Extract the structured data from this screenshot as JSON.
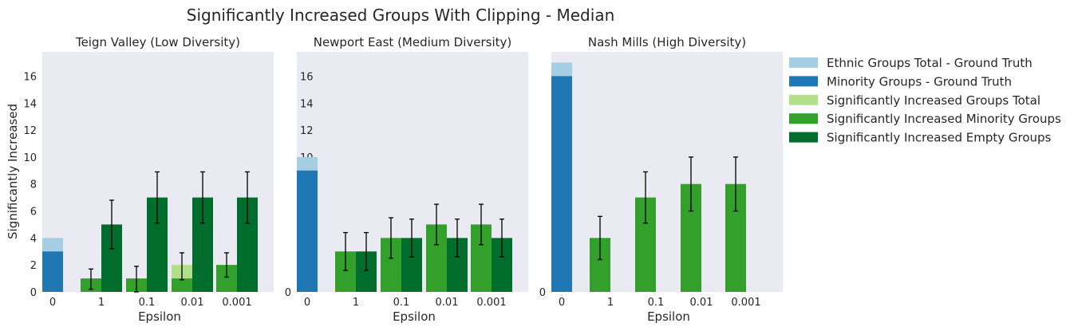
{
  "chart_data": {
    "type": "bar",
    "title": "Significantly Increased Groups With Clipping - Median",
    "ylabel": "Significantly Increased",
    "xlabel": "Epsilon",
    "ylim": [
      0,
      17.8
    ],
    "yticks": [
      0,
      2,
      4,
      6,
      8,
      10,
      12,
      14,
      16
    ],
    "categories": [
      "0",
      "1",
      "0.1",
      "0.01",
      "0.001"
    ],
    "grid": false,
    "legend_position": "right, outside plots",
    "colors": {
      "ethnic_total_gt": "#a6cee3",
      "minority_gt": "#1f78b4",
      "sig_total": "#b2df8a",
      "sig_minority": "#33a02c",
      "sig_empty": "#006d2c",
      "panel_bg": "#eaeaf2"
    },
    "legend": [
      {
        "label": "Ethnic Groups Total - Ground Truth",
        "color_key": "ethnic_total_gt"
      },
      {
        "label": "Minority Groups - Ground Truth",
        "color_key": "minority_gt"
      },
      {
        "label": "Significantly Increased Groups Total",
        "color_key": "sig_total"
      },
      {
        "label": "Significantly Increased Minority Groups",
        "color_key": "sig_minority"
      },
      {
        "label": "Significantly Increased Empty Groups",
        "color_key": "sig_empty"
      }
    ],
    "panels": [
      {
        "subtitle": "Teign Valley (Low Diversity)",
        "ground_truth": {
          "ethnic_total": 4,
          "minority": 3
        },
        "epsilons": [
          {
            "eps": "1",
            "total": 1,
            "total_err": [
              0.2,
              1.7
            ],
            "minority": 1,
            "empty": 5,
            "empty_err": [
              3.2,
              6.8
            ]
          },
          {
            "eps": "0.1",
            "total": 1,
            "total_err": [
              0,
              1.9
            ],
            "minority": 1,
            "empty": 7,
            "empty_err": [
              5.1,
              8.9
            ]
          },
          {
            "eps": "0.01",
            "total": 2,
            "total_err": [
              0.9,
              2.9
            ],
            "minority": 1,
            "empty": 7,
            "empty_err": [
              5.1,
              8.9
            ]
          },
          {
            "eps": "0.001",
            "total": 2,
            "total_err": [
              1.1,
              2.9
            ],
            "minority": 2,
            "empty": 7,
            "empty_err": [
              5.1,
              8.9
            ]
          }
        ]
      },
      {
        "subtitle": "Newport East (Medium Diversity)",
        "ground_truth": {
          "ethnic_total": 10,
          "minority": 9
        },
        "epsilons": [
          {
            "eps": "1",
            "total": 3,
            "total_err": [
              1.6,
              4.4
            ],
            "minority": 3,
            "empty": 3,
            "empty_err": [
              1.6,
              4.4
            ]
          },
          {
            "eps": "0.1",
            "total": 4,
            "total_err": [
              2.5,
              5.5
            ],
            "minority": 4,
            "empty": 4,
            "empty_err": [
              2.6,
              5.4
            ]
          },
          {
            "eps": "0.01",
            "total": 5,
            "total_err": [
              3.5,
              6.5
            ],
            "minority": 5,
            "empty": 4,
            "empty_err": [
              2.6,
              5.4
            ]
          },
          {
            "eps": "0.001",
            "total": 5,
            "total_err": [
              3.5,
              6.5
            ],
            "minority": 5,
            "empty": 4,
            "empty_err": [
              2.6,
              5.4
            ]
          }
        ]
      },
      {
        "subtitle": "Nash Mills (High Diversity)",
        "ground_truth": {
          "ethnic_total": 17,
          "minority": 16
        },
        "epsilons": [
          {
            "eps": "1",
            "total": 4,
            "total_err": [
              2.4,
              5.6
            ],
            "minority": 4,
            "empty": 0,
            "empty_err": null
          },
          {
            "eps": "0.1",
            "total": 7,
            "total_err": [
              5.1,
              8.9
            ],
            "minority": 7,
            "empty": 0,
            "empty_err": null
          },
          {
            "eps": "0.01",
            "total": 8,
            "total_err": [
              6,
              10
            ],
            "minority": 8,
            "empty": 0,
            "empty_err": null
          },
          {
            "eps": "0.001",
            "total": 8,
            "total_err": [
              6,
              10
            ],
            "minority": 8,
            "empty": 0,
            "empty_err": null
          }
        ]
      }
    ]
  }
}
